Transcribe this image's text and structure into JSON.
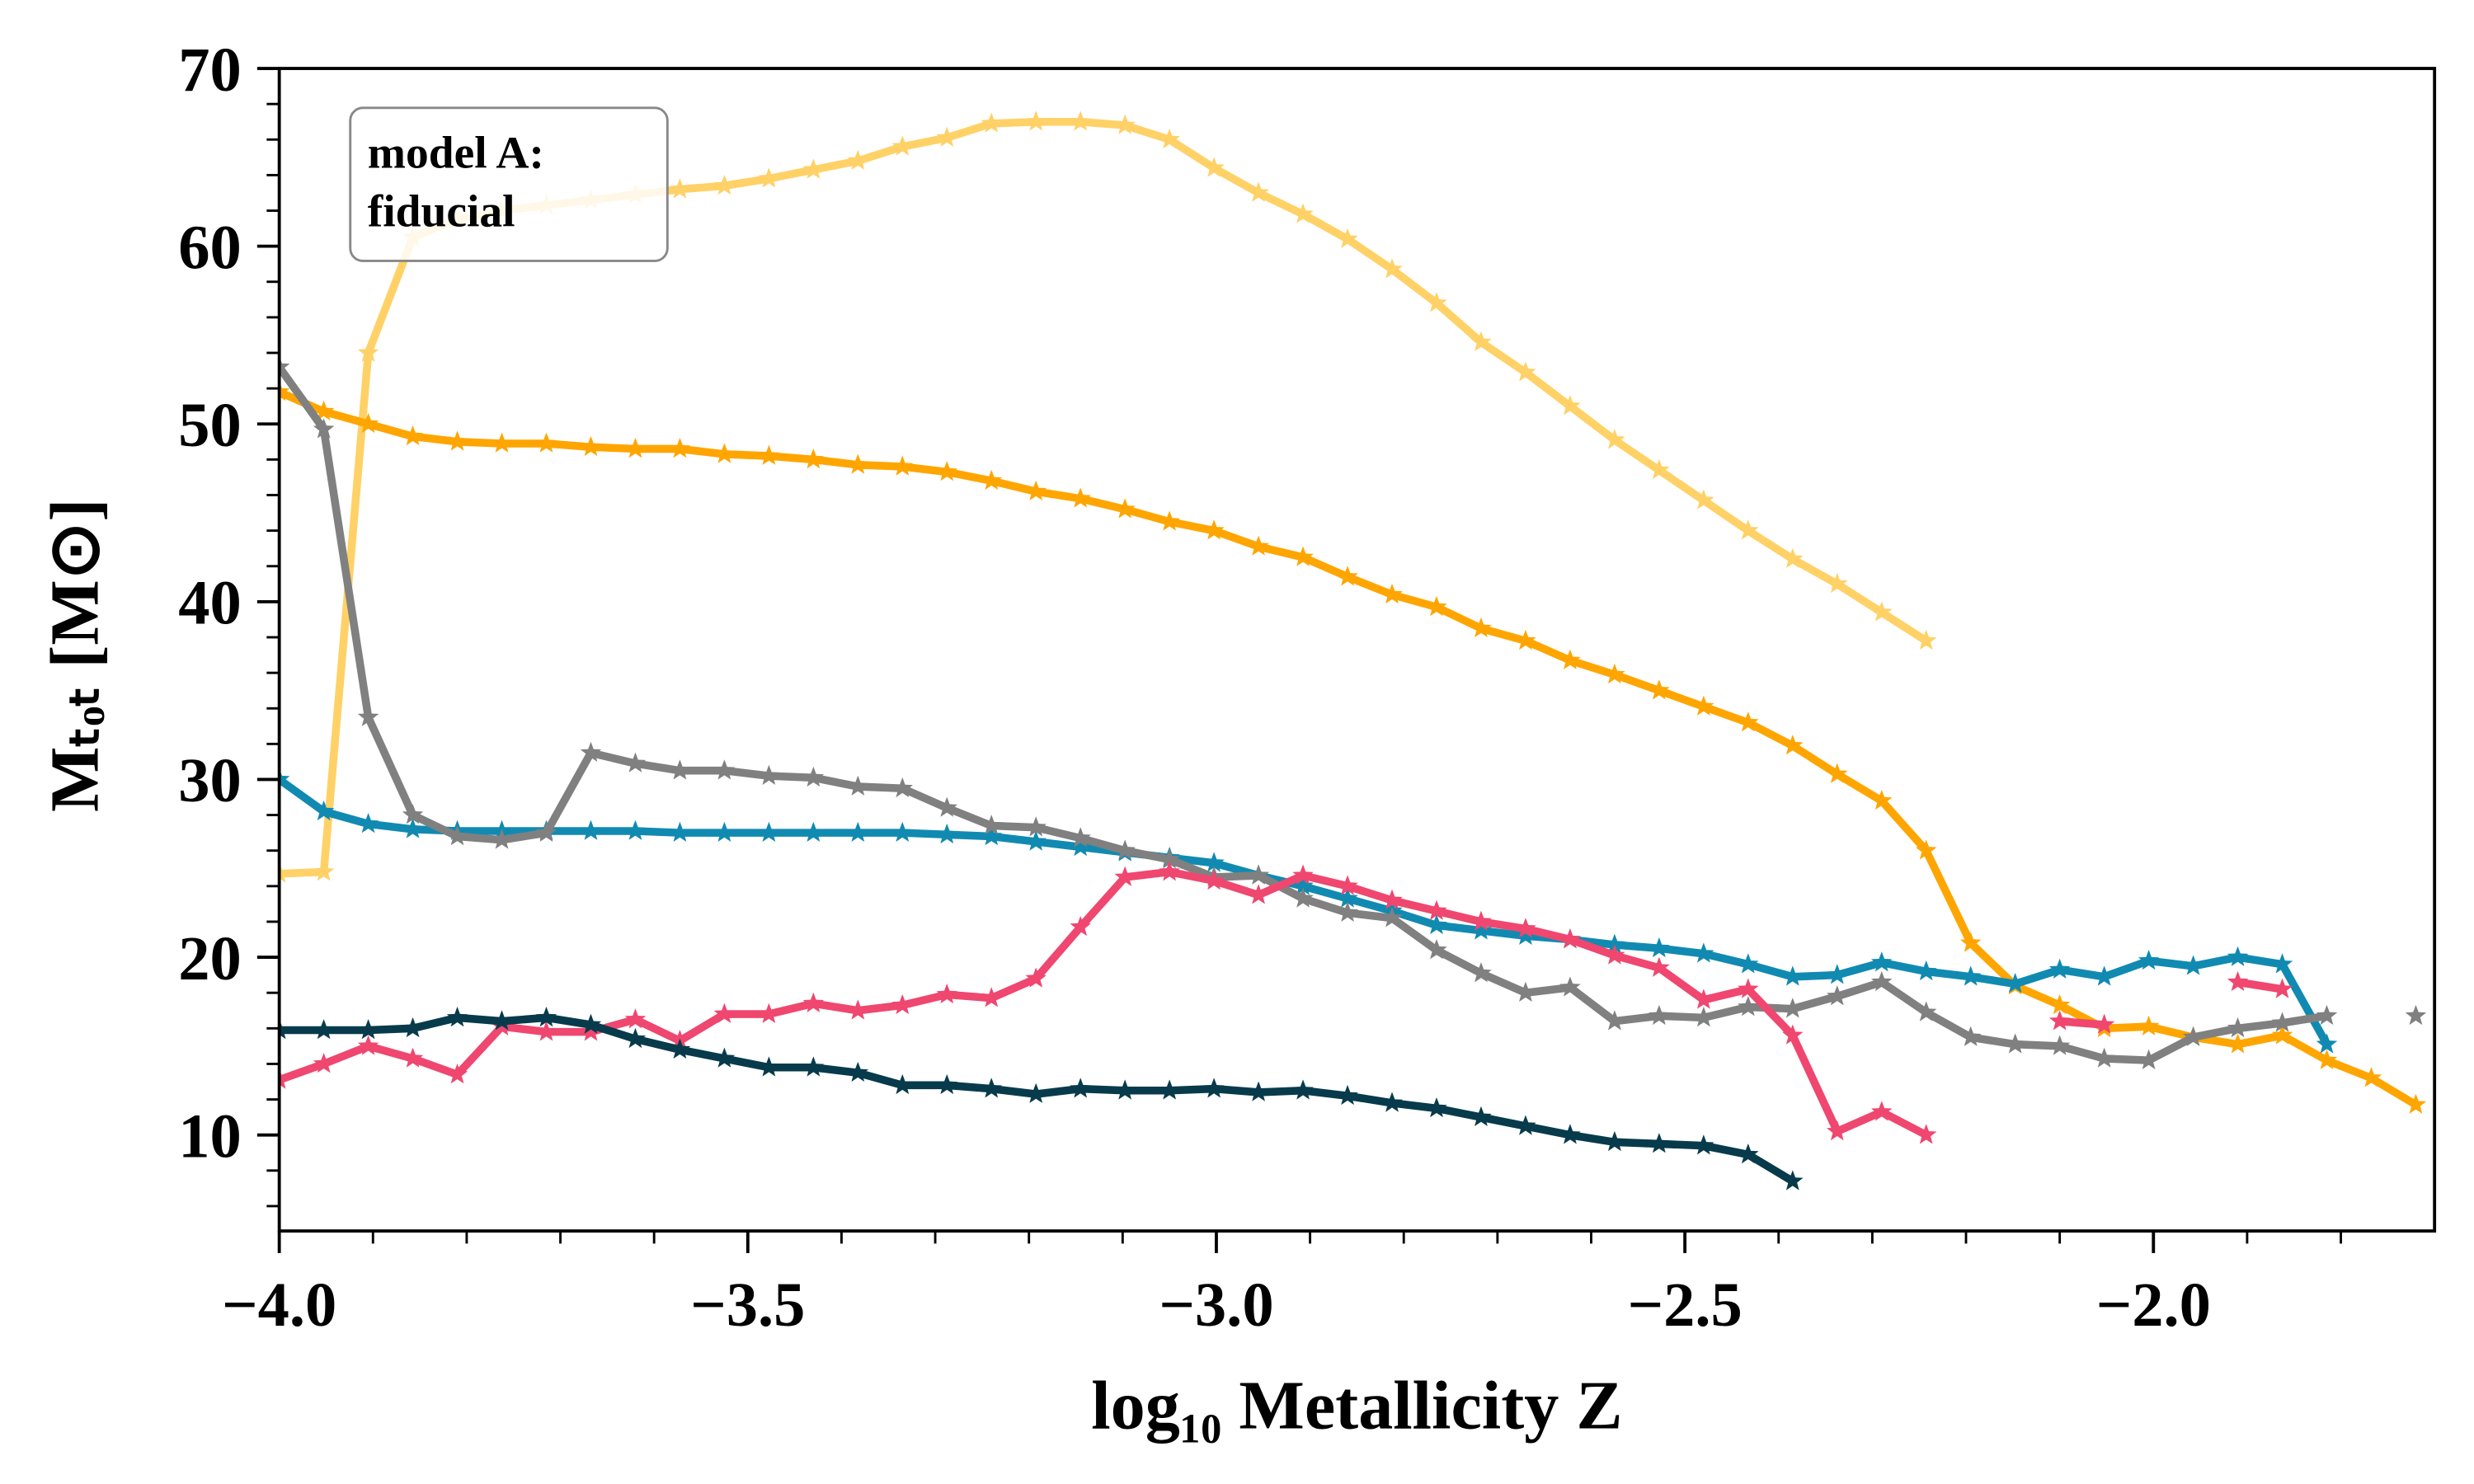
{
  "chart_data": {
    "type": "line",
    "xlabel": "log₁₀ Metallicity Z",
    "ylabel": "Mₜₒₜ [M⊙]",
    "annotation": [
      "model A:",
      "fiducial"
    ],
    "x": [
      -4.0,
      -3.9525,
      -3.905,
      -3.8575,
      -3.81,
      -3.7625,
      -3.715,
      -3.6675,
      -3.62,
      -3.5725,
      -3.525,
      -3.4775,
      -3.43,
      -3.3825,
      -3.335,
      -3.2875,
      -3.24,
      -3.1925,
      -3.145,
      -3.0975,
      -3.05,
      -3.0025,
      -2.955,
      -2.9075,
      -2.86,
      -2.8125,
      -2.765,
      -2.7175,
      -2.67,
      -2.6225,
      -2.575,
      -2.5275,
      -2.48,
      -2.4325,
      -2.385,
      -2.3375,
      -2.29,
      -2.2425,
      -2.195,
      -2.1475,
      -2.1,
      -2.0525,
      -2.005,
      -1.9575,
      -1.91,
      -1.8625,
      -1.815,
      -1.7675,
      -1.72
    ],
    "series": [
      {
        "color": "#ffd166",
        "values": [
          24.7,
          24.8,
          54,
          60.5,
          61.5,
          62,
          62.3,
          62.6,
          62.9,
          63.2,
          63.4,
          63.8,
          64.3,
          64.8,
          65.6,
          66.1,
          66.9,
          67.0,
          67.0,
          66.8,
          66.0,
          64.4,
          63.0,
          61.8,
          60.4,
          58.7,
          56.8,
          54.6,
          52.9,
          51.0,
          49.1,
          47.4,
          45.7,
          44.0,
          42.4,
          41.0,
          39.4,
          37.8,
          null,
          null,
          null,
          null,
          null,
          null,
          null,
          null,
          null,
          null,
          null
        ]
      },
      {
        "color": "#ffa500",
        "values": [
          51.8,
          50.7,
          50.0,
          49.3,
          49.0,
          48.9,
          48.9,
          48.7,
          48.6,
          48.6,
          48.3,
          48.2,
          48.0,
          47.7,
          47.6,
          47.3,
          46.8,
          46.2,
          45.8,
          45.2,
          44.5,
          44.0,
          43.1,
          42.5,
          41.4,
          40.4,
          39.7,
          38.5,
          37.8,
          36.7,
          35.9,
          35.0,
          34.1,
          33.2,
          31.9,
          30.3,
          28.8,
          26.0,
          20.8,
          18.4,
          17.3,
          16.0,
          16.1,
          15.5,
          15.1,
          15.6,
          14.2,
          13.2,
          11.7
        ]
      },
      {
        "color": "#118ab2",
        "values": [
          30.0,
          28.2,
          27.5,
          27.2,
          27.1,
          27.1,
          27.1,
          27.1,
          27.1,
          27.0,
          27.0,
          27.0,
          27.0,
          27.0,
          27.0,
          26.9,
          26.8,
          26.5,
          26.2,
          25.9,
          25.6,
          25.3,
          24.6,
          24.0,
          23.3,
          22.6,
          21.8,
          21.5,
          21.2,
          21.0,
          20.7,
          20.5,
          20.2,
          19.6,
          18.9,
          19.0,
          19.7,
          19.2,
          18.9,
          18.5,
          19.3,
          18.9,
          19.8,
          19.5,
          20.0,
          19.6,
          15.1,
          null,
          null
        ]
      },
      {
        "color": "#808080",
        "values": [
          53.2,
          49.7,
          33.5,
          28.0,
          26.8,
          26.6,
          27.0,
          31.5,
          30.9,
          30.5,
          30.5,
          30.2,
          30.1,
          29.6,
          29.5,
          28.4,
          27.4,
          27.3,
          26.7,
          26.0,
          25.5,
          24.5,
          24.6,
          23.3,
          22.5,
          22.2,
          20.4,
          19.1,
          18.0,
          18.3,
          16.4,
          16.7,
          16.6,
          17.2,
          17.1,
          17.8,
          18.6,
          16.9,
          15.5,
          15.1,
          15.0,
          14.3,
          14.2,
          15.5,
          16.0,
          16.3,
          16.7,
          null,
          16.7
        ]
      },
      {
        "color": "#ef476f",
        "values": [
          13.1,
          14.0,
          15.0,
          14.3,
          13.4,
          16.1,
          15.8,
          15.8,
          16.5,
          15.3,
          16.8,
          16.8,
          17.4,
          17.0,
          17.3,
          17.9,
          17.7,
          18.8,
          21.7,
          24.5,
          24.8,
          24.3,
          23.5,
          24.6,
          24.0,
          23.2,
          22.6,
          22.0,
          21.6,
          21.0,
          20.1,
          19.4,
          17.6,
          18.2,
          15.6,
          10.2,
          11.3,
          10.0,
          null,
          null,
          16.4,
          16.2,
          null,
          null,
          18.6,
          18.2,
          null,
          null,
          null
        ]
      },
      {
        "color": "#073b4c",
        "values": [
          15.9,
          15.9,
          15.9,
          16.0,
          16.6,
          16.4,
          16.6,
          16.2,
          15.4,
          14.8,
          14.3,
          13.8,
          13.8,
          13.5,
          12.8,
          12.8,
          12.6,
          12.3,
          12.6,
          12.5,
          12.5,
          12.6,
          12.4,
          12.5,
          12.2,
          11.8,
          11.5,
          11.0,
          10.5,
          10.0,
          9.6,
          9.5,
          9.4,
          8.9,
          7.4,
          null,
          null,
          null,
          null,
          null,
          null,
          null,
          null,
          null,
          null,
          null,
          null,
          null,
          null
        ]
      }
    ],
    "xlim": [
      -4.0,
      -1.7
    ],
    "ylim": [
      4.6,
      70
    ],
    "xticks": [
      {
        "value": -4.0,
        "label": "−4.0"
      },
      {
        "value": -3.5,
        "label": "−3.5"
      },
      {
        "value": -3.0,
        "label": "−3.0"
      },
      {
        "value": -2.5,
        "label": "−2.5"
      },
      {
        "value": -2.0,
        "label": "−2.0"
      }
    ],
    "yticks": [
      10,
      20,
      30,
      40,
      50,
      60,
      70
    ],
    "xminorticks": [
      -3.9,
      -3.8,
      -3.7,
      -3.6,
      -3.4,
      -3.3,
      -3.2,
      -3.1,
      -2.9,
      -2.8,
      -2.7,
      -2.6,
      -2.4,
      -2.3,
      -2.2,
      -2.1,
      -1.9,
      -1.8
    ],
    "yminorticks": [
      6,
      8,
      12,
      14,
      16,
      18,
      22,
      24,
      26,
      28,
      32,
      34,
      36,
      38,
      42,
      44,
      46,
      48,
      52,
      54,
      56,
      58,
      62,
      64,
      66,
      68
    ],
    "grid": false
  }
}
